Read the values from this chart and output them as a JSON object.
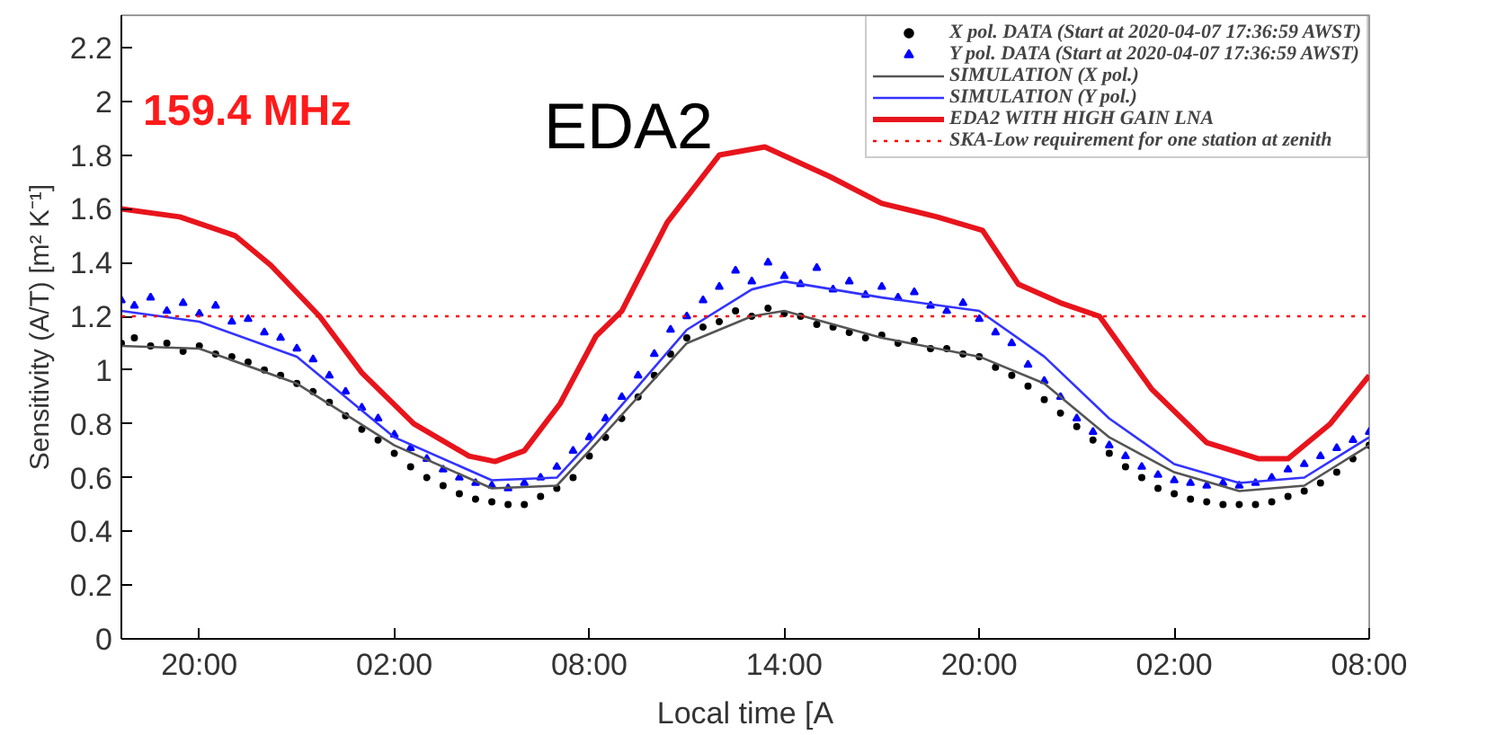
{
  "chart_data": {
    "type": "line",
    "xlabel": "Local time [A",
    "ylabel": "Sensitivity (A/T) [m² K⁻¹]",
    "annotations": [
      "159.4  MHz",
      "EDA2"
    ],
    "xlim": [
      "2020-04-07T17:36",
      "2020-04-09T08:00"
    ],
    "xticks": [
      {
        "value": "2020-04-07T20:00",
        "label": "20:00"
      },
      {
        "value": "2020-04-08T02:00",
        "label": "02:00"
      },
      {
        "value": "2020-04-08T08:00",
        "label": "08:00"
      },
      {
        "value": "2020-04-08T14:00",
        "label": "14:00"
      },
      {
        "value": "2020-04-08T20:00",
        "label": "20:00"
      },
      {
        "value": "2020-04-09T02:00",
        "label": "02:00"
      },
      {
        "value": "2020-04-09T08:00",
        "label": "08:00"
      }
    ],
    "ylim": [
      0,
      2.32
    ],
    "yticks": [
      0,
      0.2,
      0.4,
      0.6,
      0.8,
      1,
      1.2,
      1.4,
      1.6,
      1.8,
      2,
      2.2
    ],
    "grid": false,
    "legend": "top right",
    "x": [
      "2020-04-07T17:36",
      "2020-04-07T18:00",
      "2020-04-07T18:30",
      "2020-04-07T19:00",
      "2020-04-07T19:30",
      "2020-04-07T20:00",
      "2020-04-07T20:30",
      "2020-04-07T21:00",
      "2020-04-07T21:30",
      "2020-04-07T22:00",
      "2020-04-07T22:30",
      "2020-04-07T23:00",
      "2020-04-07T23:30",
      "2020-04-08T00:00",
      "2020-04-08T00:30",
      "2020-04-08T01:00",
      "2020-04-08T01:30",
      "2020-04-08T02:00",
      "2020-04-08T02:30",
      "2020-04-08T03:00",
      "2020-04-08T03:30",
      "2020-04-08T04:00",
      "2020-04-08T04:30",
      "2020-04-08T05:00",
      "2020-04-08T05:30",
      "2020-04-08T06:00",
      "2020-04-08T06:30",
      "2020-04-08T07:00",
      "2020-04-08T07:30",
      "2020-04-08T08:00",
      "2020-04-08T08:30",
      "2020-04-08T09:00",
      "2020-04-08T09:30",
      "2020-04-08T10:00",
      "2020-04-08T10:30",
      "2020-04-08T11:00",
      "2020-04-08T11:30",
      "2020-04-08T12:00",
      "2020-04-08T12:30",
      "2020-04-08T13:00",
      "2020-04-08T13:30",
      "2020-04-08T14:00",
      "2020-04-08T14:30",
      "2020-04-08T15:00",
      "2020-04-08T15:30",
      "2020-04-08T16:00",
      "2020-04-08T16:30",
      "2020-04-08T17:00",
      "2020-04-08T17:30",
      "2020-04-08T18:00",
      "2020-04-08T18:30",
      "2020-04-08T19:00",
      "2020-04-08T19:30",
      "2020-04-08T20:00",
      "2020-04-08T20:30",
      "2020-04-08T21:00",
      "2020-04-08T21:30",
      "2020-04-08T22:00",
      "2020-04-08T22:30",
      "2020-04-08T23:00",
      "2020-04-08T23:30",
      "2020-04-09T00:00",
      "2020-04-09T00:30",
      "2020-04-09T01:00",
      "2020-04-09T01:30",
      "2020-04-09T02:00",
      "2020-04-09T02:30",
      "2020-04-09T03:00",
      "2020-04-09T03:30",
      "2020-04-09T04:00",
      "2020-04-09T04:30",
      "2020-04-09T05:00",
      "2020-04-09T05:30",
      "2020-04-09T06:00",
      "2020-04-09T06:30",
      "2020-04-09T07:00",
      "2020-04-09T07:30",
      "2020-04-09T08:00"
    ],
    "series": [
      {
        "name": "X pol. DATA (Start at 2020-04-07 17:36:59 AWST)",
        "type": "scatter",
        "marker": "circle",
        "color": "#000000",
        "values": [
          1.1,
          1.12,
          1.09,
          1.1,
          1.07,
          1.09,
          1.06,
          1.05,
          1.03,
          1.0,
          0.98,
          0.95,
          0.92,
          0.88,
          0.83,
          0.78,
          0.74,
          0.69,
          0.64,
          0.6,
          0.57,
          0.54,
          0.52,
          0.51,
          0.5,
          0.5,
          0.53,
          0.56,
          0.6,
          0.68,
          0.75,
          0.82,
          0.9,
          0.98,
          1.06,
          1.12,
          1.16,
          1.18,
          1.22,
          1.2,
          1.23,
          1.21,
          1.2,
          1.17,
          1.16,
          1.14,
          1.12,
          1.13,
          1.1,
          1.11,
          1.08,
          1.08,
          1.06,
          1.05,
          1.01,
          0.98,
          0.94,
          0.89,
          0.84,
          0.79,
          0.74,
          0.69,
          0.64,
          0.6,
          0.56,
          0.54,
          0.52,
          0.51,
          0.5,
          0.5,
          0.5,
          0.51,
          0.53,
          0.55,
          0.58,
          0.62,
          0.67,
          0.72
        ]
      },
      {
        "name": "Y pol. DATA (Start at 2020-04-07 17:36:59 AWST)",
        "type": "scatter",
        "marker": "triangle",
        "color": "#0000ff",
        "values": [
          1.26,
          1.24,
          1.27,
          1.22,
          1.25,
          1.21,
          1.24,
          1.18,
          1.19,
          1.14,
          1.12,
          1.08,
          1.04,
          0.98,
          0.92,
          0.86,
          0.82,
          0.76,
          0.71,
          0.67,
          0.63,
          0.6,
          0.58,
          0.57,
          0.56,
          0.58,
          0.6,
          0.64,
          0.7,
          0.75,
          0.82,
          0.9,
          0.98,
          1.06,
          1.15,
          1.2,
          1.26,
          1.31,
          1.37,
          1.33,
          1.4,
          1.35,
          1.32,
          1.38,
          1.3,
          1.33,
          1.28,
          1.31,
          1.27,
          1.29,
          1.24,
          1.22,
          1.25,
          1.19,
          1.14,
          1.1,
          1.02,
          0.96,
          0.9,
          0.82,
          0.77,
          0.72,
          0.68,
          0.64,
          0.61,
          0.59,
          0.58,
          0.57,
          0.58,
          0.57,
          0.58,
          0.6,
          0.63,
          0.65,
          0.68,
          0.71,
          0.74,
          0.77
        ]
      },
      {
        "name": "SIMULATION (X pol.)",
        "color": "#555555",
        "x": [
          "2020-04-07T17:36",
          "2020-04-07T20:00",
          "2020-04-07T23:00",
          "2020-04-08T02:00",
          "2020-04-08T05:00",
          "2020-04-08T07:00",
          "2020-04-08T08:00",
          "2020-04-08T11:00",
          "2020-04-08T13:00",
          "2020-04-08T14:00",
          "2020-04-08T17:00",
          "2020-04-08T20:00",
          "2020-04-08T22:00",
          "2020-04-09T00:00",
          "2020-04-09T02:00",
          "2020-04-09T04:00",
          "2020-04-09T06:00",
          "2020-04-09T08:00"
        ],
        "values": [
          1.09,
          1.08,
          0.95,
          0.72,
          0.56,
          0.57,
          0.7,
          1.1,
          1.2,
          1.22,
          1.12,
          1.05,
          0.95,
          0.75,
          0.62,
          0.55,
          0.57,
          0.72
        ]
      },
      {
        "name": "SIMULATION (Y pol.)",
        "color": "#3333ff",
        "x": [
          "2020-04-07T17:36",
          "2020-04-07T20:00",
          "2020-04-07T23:00",
          "2020-04-08T02:00",
          "2020-04-08T05:00",
          "2020-04-08T07:00",
          "2020-04-08T08:00",
          "2020-04-08T11:00",
          "2020-04-08T13:00",
          "2020-04-08T14:00",
          "2020-04-08T17:00",
          "2020-04-08T20:00",
          "2020-04-08T22:00",
          "2020-04-09T00:00",
          "2020-04-09T02:00",
          "2020-04-09T04:00",
          "2020-04-09T06:00",
          "2020-04-09T08:00"
        ],
        "values": [
          1.22,
          1.18,
          1.05,
          0.75,
          0.59,
          0.6,
          0.73,
          1.15,
          1.3,
          1.33,
          1.27,
          1.22,
          1.05,
          0.82,
          0.65,
          0.58,
          0.6,
          0.75
        ]
      },
      {
        "name": "EDA2 WITH HIGH GAIN LNA",
        "color": "#e8141c",
        "x": [
          "2020-04-07T17:36",
          "2020-04-07T19:24",
          "2020-04-07T21:06",
          "2020-04-07T22:12",
          "2020-04-07T23:42",
          "2020-04-08T01:00",
          "2020-04-08T02:36",
          "2020-04-08T04:18",
          "2020-04-08T05:06",
          "2020-04-08T06:00",
          "2020-04-08T07:06",
          "2020-04-08T08:12",
          "2020-04-08T09:00",
          "2020-04-08T10:24",
          "2020-04-08T12:00",
          "2020-04-08T13:24",
          "2020-04-08T15:24",
          "2020-04-08T17:00",
          "2020-04-08T18:42",
          "2020-04-08T20:06",
          "2020-04-08T21:12",
          "2020-04-08T22:30",
          "2020-04-08T23:42",
          "2020-04-09T01:18",
          "2020-04-09T03:00",
          "2020-04-09T04:36",
          "2020-04-09T05:30",
          "2020-04-09T06:48",
          "2020-04-09T08:00"
        ],
        "values": [
          1.6,
          1.57,
          1.5,
          1.39,
          1.2,
          0.99,
          0.8,
          0.68,
          0.66,
          0.7,
          0.875,
          1.125,
          1.22,
          1.55,
          1.8,
          1.83,
          1.72,
          1.62,
          1.57,
          1.52,
          1.32,
          1.25,
          1.2,
          0.93,
          0.73,
          0.67,
          0.67,
          0.8,
          0.98
        ]
      }
    ],
    "ref_lines": [
      {
        "axis": "y",
        "value": 1.2,
        "label": "SKA-Low requirement for one station at zenith",
        "color": "#ff0000",
        "line_style": "dotted"
      }
    ]
  }
}
